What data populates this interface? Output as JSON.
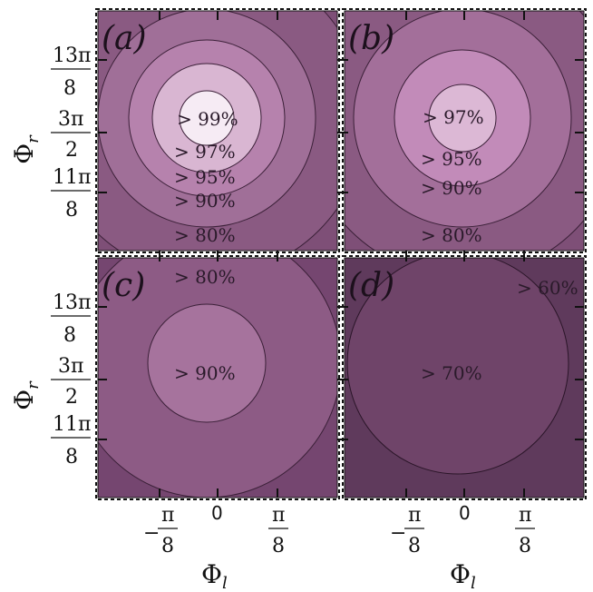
{
  "chart_data": {
    "type": "contour",
    "xlabel": "Φ_l",
    "ylabel": "Φ_r",
    "x_ticks": [
      "-π/8",
      "0",
      "π/8"
    ],
    "y_ticks": [
      "13π/8",
      "3π/2",
      "11π/8"
    ],
    "panels": [
      {
        "tag": "(a)",
        "levels": [
          {
            "label": "> 80%",
            "color": "#8a5a82"
          },
          {
            "label": "> 90%",
            "color": "#a06f98"
          },
          {
            "label": "> 95%",
            "color": "#b682ad"
          },
          {
            "label": "> 97%",
            "color": "#d9b6d2"
          },
          {
            "label": "> 99%",
            "color": "#f6ebf4"
          }
        ],
        "background": "#7e4f77"
      },
      {
        "tag": "(b)",
        "levels": [
          {
            "label": "> 80%",
            "color": "#8a5a82"
          },
          {
            "label": "> 90%",
            "color": "#a36f9a"
          },
          {
            "label": "> 95%",
            "color": "#c28bb9"
          },
          {
            "label": "> 97%",
            "color": "#dcb8d5"
          }
        ],
        "background": "#7e4f77"
      },
      {
        "tag": "(c)",
        "levels": [
          {
            "label": "> 80%",
            "color": "#8d5b85"
          },
          {
            "label": "> 90%",
            "color": "#a6739d"
          }
        ],
        "background": "#754670"
      },
      {
        "tag": "(d)",
        "levels": [
          {
            "label": "> 60%",
            "color": "#5f3a5c"
          },
          {
            "label": "> 70%",
            "color": "#6f4469"
          }
        ],
        "background": "#52314f"
      }
    ]
  }
}
